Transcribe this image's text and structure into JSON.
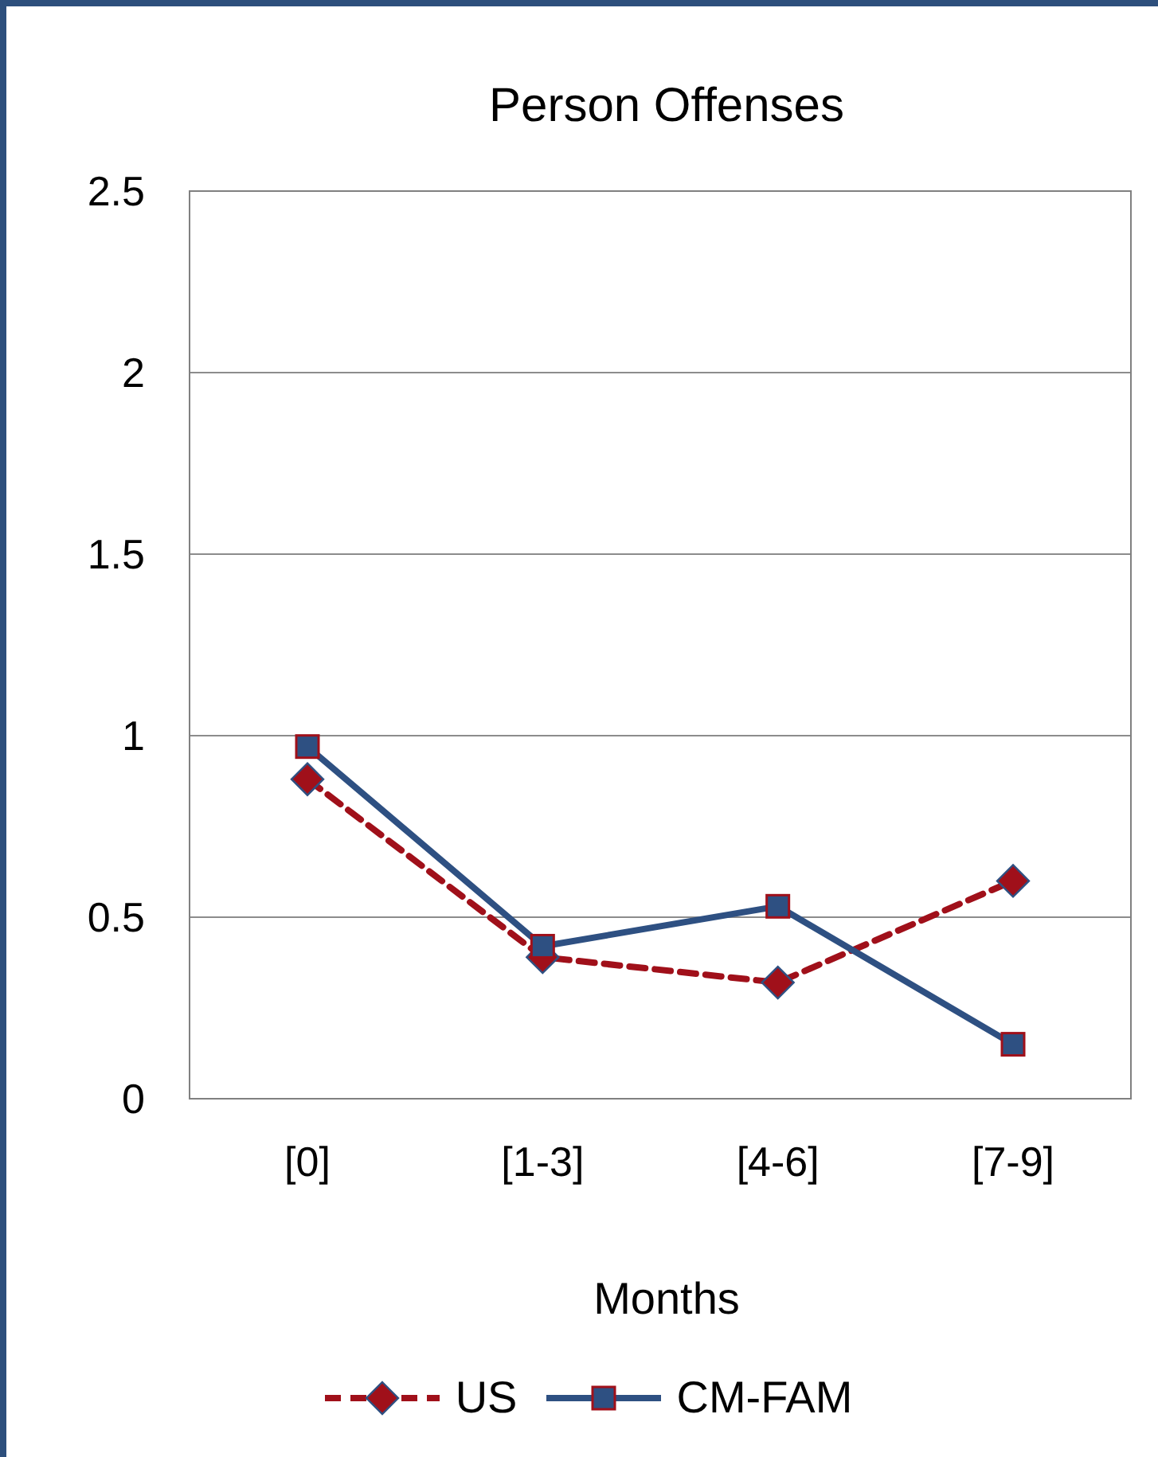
{
  "chart_data": {
    "type": "line",
    "title": "Person Offenses",
    "xlabel": "Months",
    "categories": [
      "[0]",
      "[1-3]",
      "[4-6]",
      "[7-9]"
    ],
    "series": [
      {
        "name": "US",
        "color": "#a0101a",
        "values": [
          0.88,
          0.39,
          0.32,
          0.6
        ],
        "marker": "diamond",
        "line_style": "dashed"
      },
      {
        "name": "CM-FAM",
        "color": "#2e5082",
        "values": [
          0.97,
          0.42,
          0.53,
          0.15
        ],
        "marker": "square",
        "line_style": "solid"
      }
    ],
    "ylim": [
      0,
      2.5
    ],
    "yticks": [
      0,
      0.5,
      1,
      1.5,
      2,
      2.5
    ],
    "grid": "y",
    "legend": "bottom"
  }
}
